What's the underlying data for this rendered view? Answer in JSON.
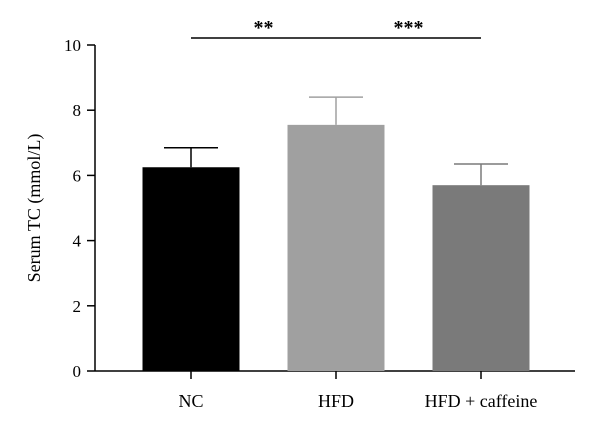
{
  "chart_data": {
    "type": "bar",
    "title": "",
    "xlabel": "",
    "ylabel": "Serum TC (mmol/L)",
    "ylim": [
      0,
      10
    ],
    "yticks": [
      0,
      2,
      4,
      6,
      8,
      10
    ],
    "categories": [
      "NC",
      "HFD",
      "HFD + caffeine"
    ],
    "values": [
      6.25,
      7.55,
      5.7
    ],
    "errors": [
      0.6,
      0.85,
      0.65
    ],
    "colors": [
      "#000000",
      "#a0a0a0",
      "#7a7a7a"
    ],
    "grid": false,
    "significance": [
      {
        "from": 0,
        "to": 1,
        "label": "**"
      },
      {
        "from": 1,
        "to": 2,
        "label": "***"
      }
    ]
  }
}
